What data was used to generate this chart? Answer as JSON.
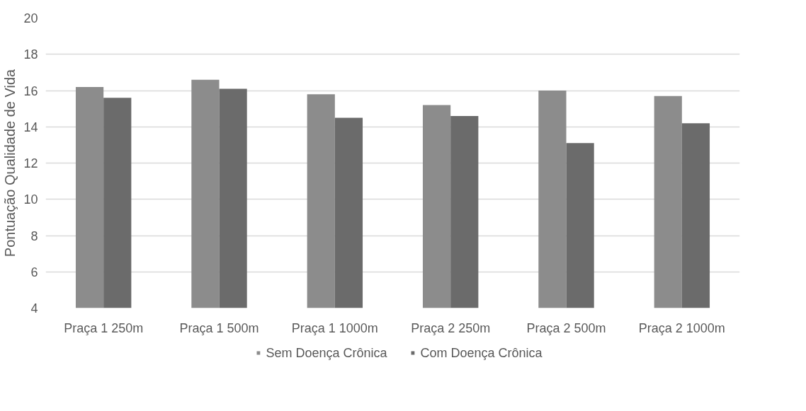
{
  "chart_data": {
    "type": "bar",
    "ylabel": "Pontuação Qualidade de Vida",
    "categories": [
      "Praça 1 250m",
      "Praça 1 500m",
      "Praça 1 1000m",
      "Praça 2 250m",
      "Praça 2 500m",
      "Praça 2 1000m"
    ],
    "series": [
      {
        "name": "Sem Doença Crônica",
        "color": "#8c8c8c",
        "values": [
          16.2,
          16.6,
          15.8,
          15.2,
          16.0,
          15.7
        ]
      },
      {
        "name": "Com Doença Crônica",
        "color": "#6b6b6b",
        "values": [
          15.6,
          16.1,
          14.5,
          14.6,
          13.1,
          14.2
        ]
      }
    ],
    "ylim": [
      4,
      20
    ],
    "yticks": [
      4,
      6,
      8,
      10,
      12,
      14,
      16,
      18,
      20
    ],
    "grid": "y",
    "legend": "bottom"
  }
}
